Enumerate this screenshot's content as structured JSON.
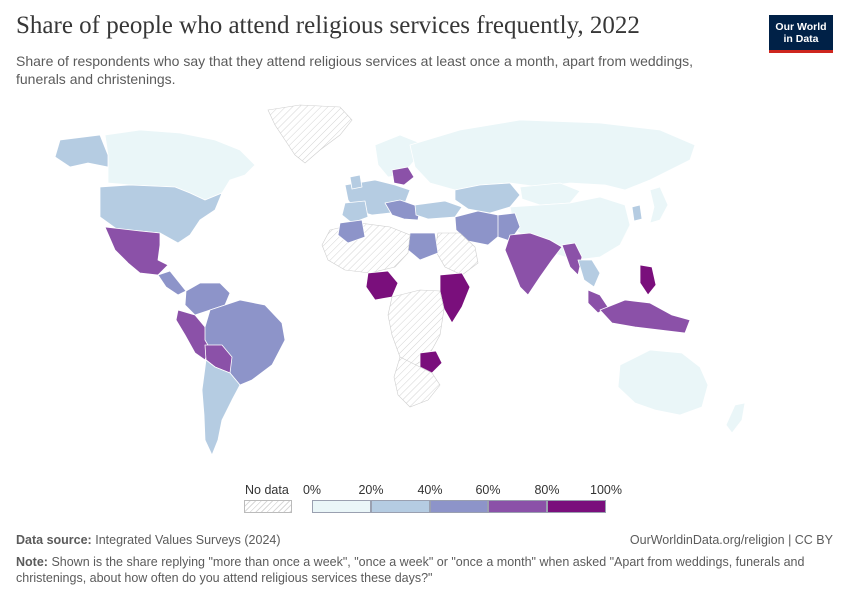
{
  "title": "Share of people who attend religious services frequently, 2022",
  "subtitle": "Share of respondents who say that they attend religious services at least once a month, apart from weddings, funerals and christenings.",
  "logo": {
    "line1": "Our World",
    "line2": "in Data"
  },
  "legend": {
    "no_data_label": "No data",
    "ticks": [
      "0%",
      "20%",
      "40%",
      "60%",
      "80%",
      "100%"
    ],
    "bins": [
      {
        "range": "0-20%",
        "color": "#eaf6f8"
      },
      {
        "range": "20-40%",
        "color": "#b5cce2"
      },
      {
        "range": "40-60%",
        "color": "#8d94c9"
      },
      {
        "range": "60-80%",
        "color": "#8b51a8"
      },
      {
        "range": "80-100%",
        "color": "#7a0f7c"
      }
    ]
  },
  "colors": {
    "bin_0_20": "#eaf6f8",
    "bin_20_40": "#b5cce2",
    "bin_40_60": "#8d94c9",
    "bin_60_80": "#8b51a8",
    "bin_80_100": "#7a0f7c",
    "logo_bg": "#002147",
    "logo_accent": "#ce261e"
  },
  "source": {
    "label": "Data source:",
    "text": "Integrated Values Surveys (2024)"
  },
  "url": "OurWorldinData.org/religion | CC BY",
  "note": {
    "label": "Note:",
    "text": "Shown is the share replying \"more than once a week\", \"once a week\" or \"once a month\" when asked \"Apart from weddings, funerals and christenings, about how often do you attend religious services these days?\""
  }
}
